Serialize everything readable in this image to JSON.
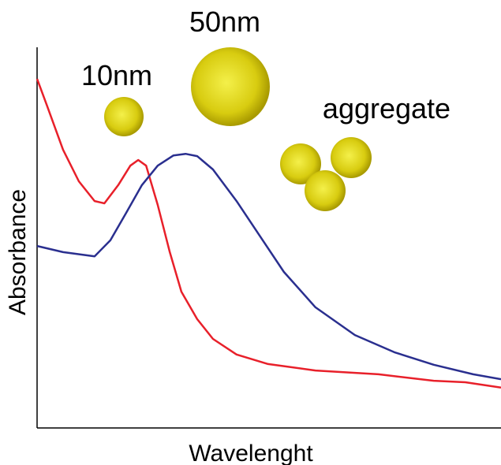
{
  "chart_data": {
    "type": "line",
    "xlabel": "Wavelenght",
    "ylabel": "Absorbance",
    "annotations": [
      "10nm",
      "50nm",
      "aggregate"
    ],
    "xlim": [
      0,
      100
    ],
    "ylim": [
      0,
      100
    ],
    "series": [
      {
        "color": "#e8202a",
        "x": [
          0,
          2.2,
          5.6,
          9.0,
          12.4,
          14.5,
          17.5,
          20.1,
          21.8,
          23.5,
          26.0,
          28.6,
          31.1,
          34.5,
          37.9,
          43.0,
          49.8,
          60.0,
          73.6,
          85.5,
          92.3,
          100
        ],
        "values": [
          91.7,
          84.5,
          73.1,
          64.8,
          59.6,
          59.0,
          63.8,
          68.9,
          70.4,
          68.9,
          58.6,
          46.2,
          35.8,
          28.6,
          23.4,
          19.3,
          16.8,
          15.1,
          14.1,
          12.4,
          12.0,
          10.6
        ]
      },
      {
        "color": "#2a2f8f",
        "x": [
          0,
          5.6,
          12.4,
          15.8,
          19.2,
          22.6,
          26.0,
          29.4,
          32.0,
          34.5,
          37.9,
          43.0,
          48.1,
          53.2,
          60.0,
          68.5,
          77.0,
          85.5,
          94.0,
          100
        ],
        "values": [
          47.8,
          46.2,
          45.1,
          49.3,
          56.5,
          63.8,
          68.9,
          71.6,
          72.0,
          71.4,
          67.9,
          59.6,
          50.3,
          41.0,
          31.7,
          24.4,
          19.9,
          16.6,
          14.1,
          12.8
        ]
      }
    ]
  }
}
